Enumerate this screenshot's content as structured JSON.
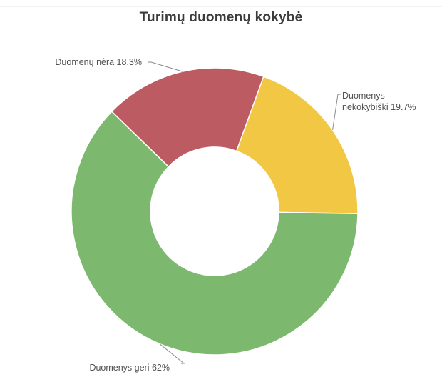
{
  "chart_data": {
    "type": "pie",
    "title": "Turimų duomenų kokybė",
    "donut": true,
    "slices": [
      {
        "label_lines": [
          "Duomenys",
          "nekokybiški 19.7%"
        ],
        "value": 19.7,
        "color": "#f2c744"
      },
      {
        "label_lines": [
          "Duomenys geri 62%"
        ],
        "value": 62.0,
        "color": "#7cb96f"
      },
      {
        "label_lines": [
          "Duomenų nėra 18.3%"
        ],
        "value": 18.3,
        "color": "#bd5b63"
      }
    ]
  }
}
